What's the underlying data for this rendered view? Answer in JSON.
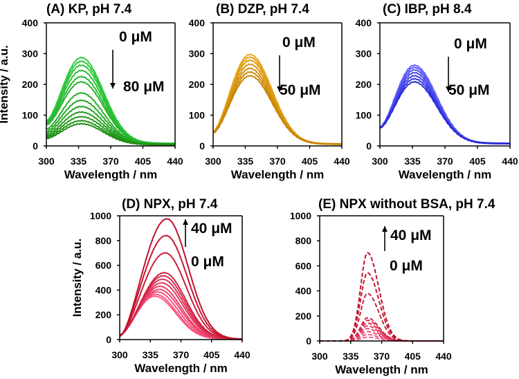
{
  "chart_data": [
    {
      "id": "A",
      "type": "line",
      "title": "(A) KP, pH 7.4",
      "xlabel": "Wavelength / nm",
      "ylabel": "Intensity / a.u.",
      "xlim": [
        300,
        440
      ],
      "ylim": [
        0,
        400
      ],
      "xticks": [
        "300",
        "335",
        "370",
        "405",
        "440"
      ],
      "yticks": [
        "0",
        "100",
        "200",
        "300",
        "400"
      ],
      "line_style": "solid",
      "colors": [
        "#2ecc40",
        "#1f8f12"
      ],
      "arrow": {
        "from_label": "0 μM",
        "to_label": "80 μM",
        "direction": "down"
      },
      "series": [
        {
          "name": "1",
          "peak_x": 338,
          "peak": 287,
          "start": 82,
          "end": 8
        },
        {
          "name": "2",
          "peak_x": 338,
          "peak": 275,
          "start": 80,
          "end": 8
        },
        {
          "name": "3",
          "peak_x": 338,
          "peak": 262,
          "start": 78,
          "end": 8
        },
        {
          "name": "4",
          "peak_x": 338,
          "peak": 245,
          "start": 75,
          "end": 7
        },
        {
          "name": "5",
          "peak_x": 338,
          "peak": 225,
          "start": 72,
          "end": 7
        },
        {
          "name": "6",
          "peak_x": 338,
          "peak": 208,
          "start": 68,
          "end": 7
        },
        {
          "name": "7",
          "peak_x": 338,
          "peak": 172,
          "start": 55,
          "end": 6
        },
        {
          "name": "8",
          "peak_x": 338,
          "peak": 148,
          "start": 48,
          "end": 6
        },
        {
          "name": "9",
          "peak_x": 338,
          "peak": 128,
          "start": 42,
          "end": 5
        },
        {
          "name": "10",
          "peak_x": 338,
          "peak": 110,
          "start": 36,
          "end": 5
        },
        {
          "name": "11",
          "peak_x": 338,
          "peak": 95,
          "start": 32,
          "end": 5
        },
        {
          "name": "12",
          "peak_x": 338,
          "peak": 82,
          "start": 28,
          "end": 4
        },
        {
          "name": "13",
          "peak_x": 338,
          "peak": 72,
          "start": 24,
          "end": 4
        }
      ]
    },
    {
      "id": "B",
      "type": "line",
      "title": "(B) DZP, pH 7.4",
      "xlabel": "Wavelength / nm",
      "ylabel": "",
      "xlim": [
        300,
        440
      ],
      "ylim": [
        0,
        400
      ],
      "xticks": [
        "300",
        "335",
        "370",
        "405",
        "440"
      ],
      "yticks": [
        "0",
        "100",
        "200",
        "300",
        "400"
      ],
      "line_style": "solid",
      "colors": [
        "#e8a81a",
        "#c88408"
      ],
      "arrow": {
        "from_label": "0 μM",
        "to_label": "50 μM",
        "direction": "down"
      },
      "series": [
        {
          "name": "1",
          "peak_x": 340,
          "peak": 297,
          "start": 48,
          "end": 6
        },
        {
          "name": "2",
          "peak_x": 340,
          "peak": 288,
          "start": 47,
          "end": 6
        },
        {
          "name": "3",
          "peak_x": 340,
          "peak": 278,
          "start": 46,
          "end": 6
        },
        {
          "name": "4",
          "peak_x": 340,
          "peak": 265,
          "start": 45,
          "end": 6
        },
        {
          "name": "5",
          "peak_x": 340,
          "peak": 252,
          "start": 44,
          "end": 6
        },
        {
          "name": "6",
          "peak_x": 340,
          "peak": 240,
          "start": 43,
          "end": 6
        },
        {
          "name": "7",
          "peak_x": 340,
          "peak": 228,
          "start": 42,
          "end": 6
        }
      ]
    },
    {
      "id": "C",
      "type": "line",
      "title": "(C) IBP, pH 8.4",
      "xlabel": "Wavelength / nm",
      "ylabel": "",
      "xlim": [
        300,
        440
      ],
      "ylim": [
        0,
        400
      ],
      "xticks": [
        "300",
        "335",
        "370",
        "405",
        "440"
      ],
      "yticks": [
        "0",
        "100",
        "200",
        "300",
        "400"
      ],
      "line_style": "solid",
      "colors": [
        "#6a6aff",
        "#2a2ad8"
      ],
      "arrow": {
        "from_label": "0 μM",
        "to_label": "50 μM",
        "direction": "down"
      },
      "series": [
        {
          "name": "1",
          "peak_x": 337,
          "peak": 262,
          "start": 62,
          "end": 8
        },
        {
          "name": "2",
          "peak_x": 337,
          "peak": 255,
          "start": 61,
          "end": 8
        },
        {
          "name": "3",
          "peak_x": 337,
          "peak": 247,
          "start": 60,
          "end": 8
        },
        {
          "name": "4",
          "peak_x": 337,
          "peak": 238,
          "start": 60,
          "end": 8
        },
        {
          "name": "5",
          "peak_x": 337,
          "peak": 228,
          "start": 59,
          "end": 8
        },
        {
          "name": "6",
          "peak_x": 337,
          "peak": 218,
          "start": 59,
          "end": 8
        },
        {
          "name": "7",
          "peak_x": 337,
          "peak": 208,
          "start": 58,
          "end": 8
        }
      ]
    },
    {
      "id": "D",
      "type": "line",
      "title": "(D) NPX, pH 7.4",
      "xlabel": "Wavelength / nm",
      "ylabel": "Intensity / a.u.",
      "xlim": [
        300,
        440
      ],
      "ylim": [
        0,
        1000
      ],
      "xticks": [
        "300",
        "335",
        "370",
        "405",
        "440"
      ],
      "yticks": [
        "0",
        "200",
        "400",
        "600",
        "800",
        "1000"
      ],
      "line_style": "solid",
      "colors": [
        "#ff5a8a",
        "#c0102a"
      ],
      "arrow": {
        "from_label": "0 μM",
        "to_label": "40 μM",
        "direction": "up"
      },
      "series": [
        {
          "name": "1",
          "peak_x": 340,
          "peak": 350,
          "start": 40,
          "end": 3
        },
        {
          "name": "2",
          "peak_x": 341,
          "peak": 365,
          "start": 40,
          "end": 3
        },
        {
          "name": "3",
          "peak_x": 343,
          "peak": 385,
          "start": 39,
          "end": 3
        },
        {
          "name": "4",
          "peak_x": 345,
          "peak": 405,
          "start": 38,
          "end": 3
        },
        {
          "name": "5",
          "peak_x": 346,
          "peak": 430,
          "start": 37,
          "end": 3
        },
        {
          "name": "6",
          "peak_x": 348,
          "peak": 458,
          "start": 36,
          "end": 3
        },
        {
          "name": "7",
          "peak_x": 349,
          "peak": 487,
          "start": 35,
          "end": 3
        },
        {
          "name": "8",
          "peak_x": 350,
          "peak": 515,
          "start": 34,
          "end": 3
        },
        {
          "name": "9",
          "peak_x": 351,
          "peak": 540,
          "start": 34,
          "end": 3
        },
        {
          "name": "10",
          "peak_x": 352,
          "peak": 700,
          "start": 30,
          "end": 3
        },
        {
          "name": "11",
          "peak_x": 353,
          "peak": 840,
          "start": 28,
          "end": 3
        },
        {
          "name": "12",
          "peak_x": 354,
          "peak": 975,
          "start": 26,
          "end": 3
        }
      ]
    },
    {
      "id": "E",
      "type": "line",
      "title": "(E) NPX without BSA, pH 7.4",
      "xlabel": "Wavelength / nm",
      "ylabel": "",
      "xlim": [
        300,
        440
      ],
      "ylim": [
        0,
        1000
      ],
      "xticks": [
        "300",
        "335",
        "370",
        "405",
        "440"
      ],
      "yticks": [
        "0",
        "200",
        "400",
        "600",
        "800",
        "1000"
      ],
      "line_style": "dashed",
      "colors": [
        "#ff5a8a",
        "#c0102a"
      ],
      "arrow": {
        "from_label": "0 μM",
        "to_label": "40 μM",
        "direction": "up"
      },
      "series": [
        {
          "name": "1",
          "peak_x": 354,
          "peak": 30,
          "start": 0,
          "end": 0
        },
        {
          "name": "2",
          "peak_x": 354,
          "peak": 52,
          "start": 0,
          "end": 0
        },
        {
          "name": "3",
          "peak_x": 354,
          "peak": 75,
          "start": 0,
          "end": 0
        },
        {
          "name": "4",
          "peak_x": 354,
          "peak": 98,
          "start": 0,
          "end": 0
        },
        {
          "name": "5",
          "peak_x": 354,
          "peak": 120,
          "start": 0,
          "end": 0
        },
        {
          "name": "6",
          "peak_x": 354,
          "peak": 142,
          "start": 0,
          "end": 0
        },
        {
          "name": "7",
          "peak_x": 354,
          "peak": 165,
          "start": 0,
          "end": 0
        },
        {
          "name": "8",
          "peak_x": 354,
          "peak": 185,
          "start": 0,
          "end": 0
        },
        {
          "name": "9",
          "peak_x": 354,
          "peak": 380,
          "start": 0,
          "end": 0
        },
        {
          "name": "10",
          "peak_x": 354,
          "peak": 545,
          "start": 0,
          "end": 0
        },
        {
          "name": "11",
          "peak_x": 354,
          "peak": 705,
          "start": 0,
          "end": 0
        }
      ]
    }
  ]
}
